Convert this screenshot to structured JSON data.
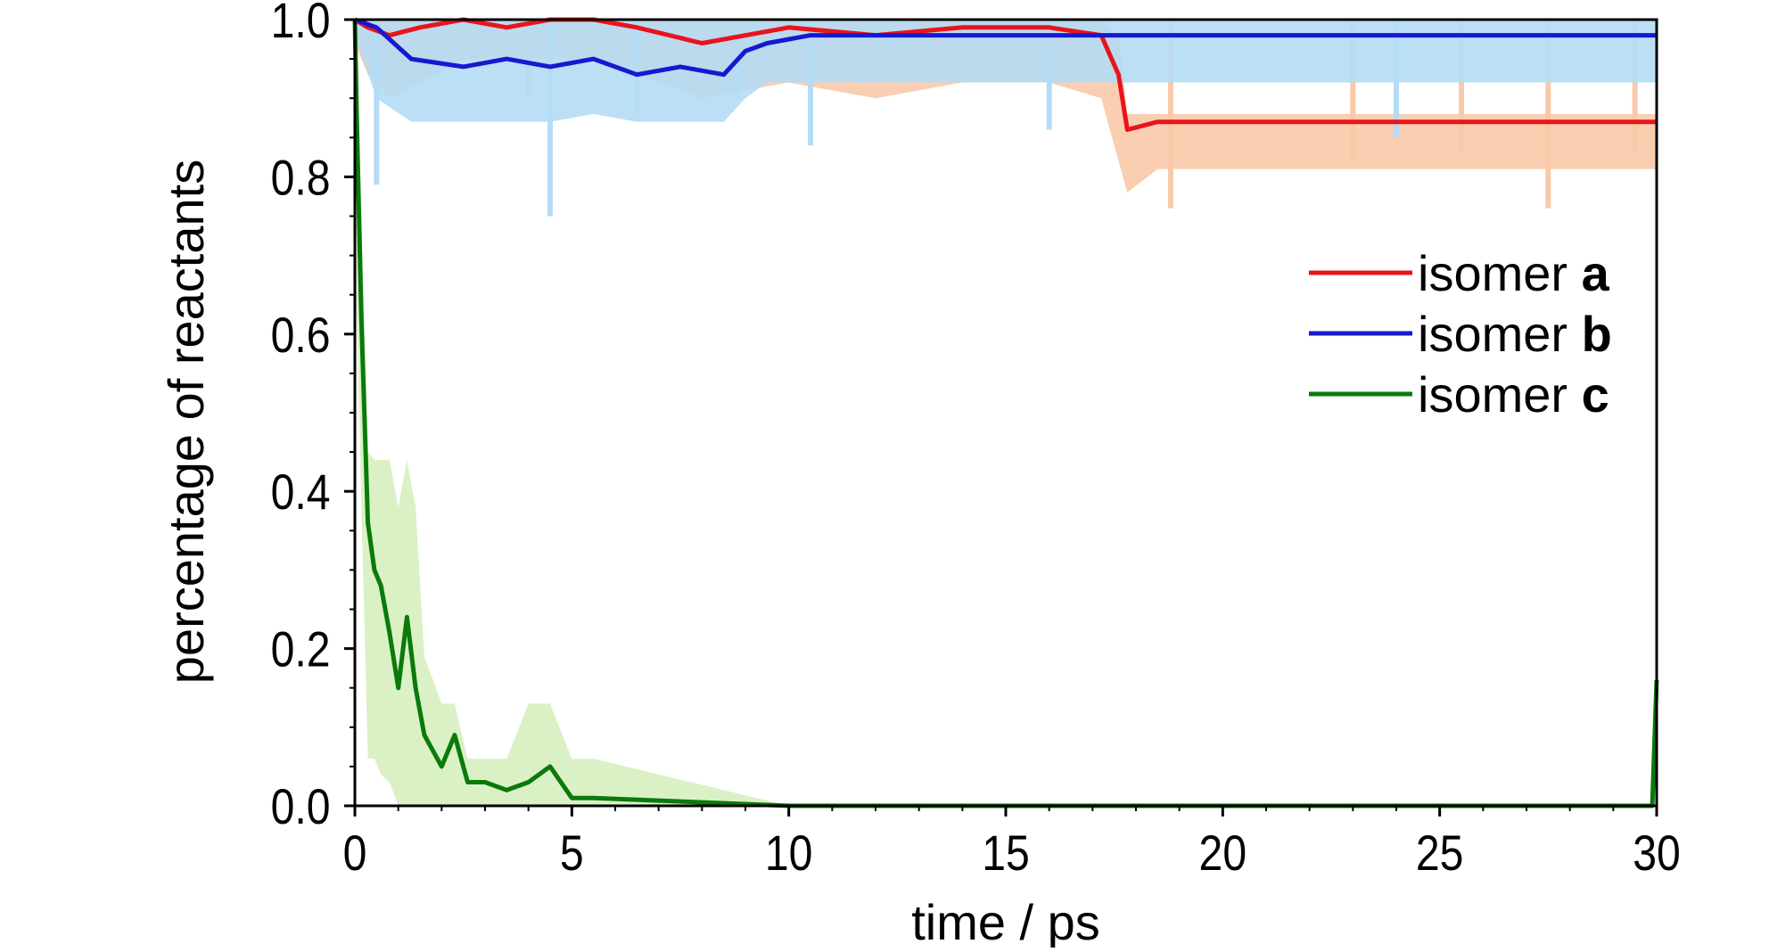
{
  "chart_data": {
    "type": "line",
    "xlabel": "time / ps",
    "ylabel": "percentage of reactants",
    "xlim": [
      0,
      30
    ],
    "ylim": [
      0,
      1.0
    ],
    "xticks": [
      0,
      5,
      10,
      15,
      20,
      25,
      30
    ],
    "yticks": [
      0.0,
      0.2,
      0.4,
      0.6,
      0.8,
      1.0
    ],
    "xtick_labels": [
      "0",
      "5",
      "10",
      "15",
      "20",
      "25",
      "30"
    ],
    "ytick_labels": [
      "0.0",
      "0.2",
      "0.4",
      "0.6",
      "0.8",
      "1.0"
    ],
    "grid": false,
    "legend_position": "right",
    "series": [
      {
        "name_prefix": "isomer ",
        "name_suffix": "a",
        "color": "#e8141c",
        "band_color": "#f8c9a8",
        "x": [
          0,
          0.3,
          0.8,
          1.5,
          2.5,
          3.5,
          4.5,
          5.5,
          6.5,
          8.0,
          10.0,
          12.0,
          14.0,
          16.0,
          17.2,
          17.6,
          17.8,
          18.5,
          19.0,
          20.0,
          22.0,
          24.0,
          26.0,
          28.0,
          30.0
        ],
        "y": [
          1.0,
          0.99,
          0.98,
          0.99,
          1.0,
          0.99,
          1.0,
          1.0,
          0.99,
          0.97,
          0.99,
          0.98,
          0.99,
          0.99,
          0.98,
          0.93,
          0.86,
          0.87,
          0.87,
          0.87,
          0.87,
          0.87,
          0.87,
          0.87,
          0.87
        ],
        "band_low": [
          0.97,
          0.93,
          0.9,
          0.92,
          0.95,
          0.95,
          0.95,
          0.95,
          0.93,
          0.9,
          0.92,
          0.9,
          0.92,
          0.92,
          0.9,
          0.82,
          0.78,
          0.81,
          0.81,
          0.81,
          0.81,
          0.81,
          0.81,
          0.81,
          0.81
        ],
        "band_high": [
          1.0,
          1.0,
          1.0,
          1.0,
          1.0,
          1.0,
          1.0,
          1.0,
          1.0,
          1.0,
          1.0,
          1.0,
          1.0,
          1.0,
          1.0,
          0.98,
          0.88,
          0.88,
          0.88,
          0.88,
          0.88,
          0.88,
          0.88,
          0.88,
          0.88
        ],
        "dips": [
          [
            1.5,
            0.95
          ],
          [
            4.0,
            0.9
          ],
          [
            8.5,
            0.93
          ],
          [
            11.5,
            0.95
          ],
          [
            18.8,
            0.76
          ],
          [
            23.0,
            0.82
          ],
          [
            25.5,
            0.83
          ],
          [
            27.5,
            0.76
          ],
          [
            29.5,
            0.83
          ]
        ]
      },
      {
        "name_prefix": "isomer ",
        "name_suffix": "b",
        "color": "#1818d0",
        "band_color": "#b4dcf4",
        "x": [
          0,
          0.5,
          1.3,
          2.5,
          3.5,
          4.5,
          5.5,
          6.5,
          7.5,
          8.5,
          9.0,
          9.5,
          10.5,
          12.0,
          14.0,
          16.0,
          18.0,
          20.0,
          22.0,
          24.0,
          26.0,
          28.0,
          30.0
        ],
        "y": [
          1.0,
          0.99,
          0.95,
          0.94,
          0.95,
          0.94,
          0.95,
          0.93,
          0.94,
          0.93,
          0.96,
          0.97,
          0.98,
          0.98,
          0.98,
          0.98,
          0.98,
          0.98,
          0.98,
          0.98,
          0.98,
          0.98,
          0.98
        ],
        "band_low": [
          0.98,
          0.9,
          0.87,
          0.87,
          0.87,
          0.87,
          0.88,
          0.87,
          0.87,
          0.87,
          0.9,
          0.92,
          0.92,
          0.92,
          0.92,
          0.92,
          0.92,
          0.92,
          0.92,
          0.92,
          0.92,
          0.92,
          0.92
        ],
        "band_high": [
          1.0,
          1.0,
          1.0,
          1.0,
          1.0,
          1.0,
          1.0,
          1.0,
          1.0,
          1.0,
          1.0,
          1.0,
          1.0,
          1.0,
          1.0,
          1.0,
          1.0,
          1.0,
          1.0,
          1.0,
          1.0,
          1.0,
          1.0
        ],
        "dips": [
          [
            4.5,
            0.89
          ],
          [
            6.5,
            0.88
          ],
          [
            8.8,
            0.9
          ],
          [
            0.5,
            0.79
          ],
          [
            4.5,
            0.75
          ],
          [
            10.5,
            0.84
          ],
          [
            16.0,
            0.86
          ],
          [
            24.0,
            0.85
          ]
        ]
      },
      {
        "name_prefix": "isomer ",
        "name_suffix": "c",
        "color": "#0a7a0a",
        "band_color": "#d6f0c0",
        "x": [
          0,
          0.05,
          0.15,
          0.3,
          0.45,
          0.6,
          0.8,
          1.0,
          1.2,
          1.4,
          1.6,
          2.0,
          2.3,
          2.6,
          3.0,
          3.5,
          4.0,
          4.5,
          5.0,
          5.5,
          10.0,
          15.0,
          20.0,
          25.0,
          29.9,
          30.0
        ],
        "y": [
          1.0,
          0.86,
          0.62,
          0.36,
          0.3,
          0.28,
          0.22,
          0.15,
          0.24,
          0.15,
          0.09,
          0.05,
          0.09,
          0.03,
          0.03,
          0.02,
          0.03,
          0.05,
          0.01,
          0.01,
          0.0,
          0.0,
          0.0,
          0.0,
          0.0,
          0.16
        ],
        "band_low": [
          0.95,
          0.62,
          0.38,
          0.06,
          0.06,
          0.04,
          0.03,
          0.0,
          0.0,
          0.0,
          0.0,
          0.0,
          0.0,
          0.0,
          0.0,
          0.0,
          0.0,
          0.0,
          0.0,
          0.0,
          0.0,
          0.0,
          0.0,
          0.0,
          0.0,
          0.0
        ],
        "band_high": [
          1.0,
          0.95,
          0.75,
          0.45,
          0.44,
          0.44,
          0.44,
          0.38,
          0.44,
          0.38,
          0.19,
          0.13,
          0.13,
          0.06,
          0.06,
          0.06,
          0.13,
          0.13,
          0.06,
          0.06,
          0.0,
          0.0,
          0.0,
          0.0,
          0.0,
          0.0
        ],
        "dips": []
      }
    ]
  }
}
